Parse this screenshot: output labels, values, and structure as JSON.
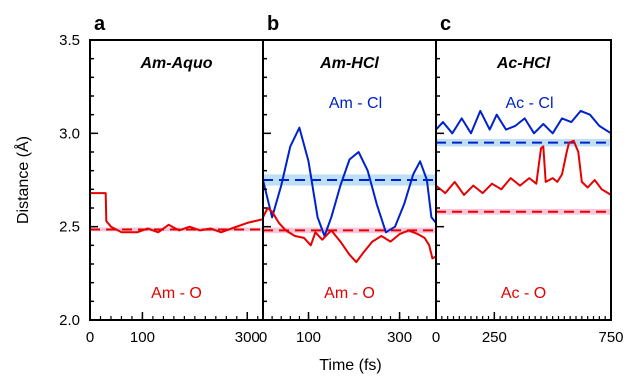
{
  "colors": {
    "oxygen": "#e60000",
    "chloride": "#0022cc",
    "oxygen_band": "#f7c6dc",
    "chloride_band": "#bfe0f4",
    "axis": "#000000"
  },
  "chart_data": {
    "type": "line",
    "ylabel": "Distance (Å)",
    "xlabel": "Time (fs)",
    "ylim": [
      2.0,
      3.5
    ],
    "yticks": [
      "2.0",
      "2.5",
      "3.0",
      "3.5"
    ],
    "panels": [
      {
        "letter": "a",
        "title": "Am-Aquo",
        "xlim": [
          0,
          330
        ],
        "xticks": [
          "0",
          "100",
          "300"
        ],
        "xtick_values": [
          0,
          100,
          300
        ],
        "labels": {
          "upper": "",
          "lower": "Am - O"
        },
        "series": [
          {
            "species": "oxygen",
            "values": [
              [
                0,
                2.68
              ],
              [
                30,
                2.68
              ],
              [
                31,
                2.53
              ],
              [
                40,
                2.5
              ],
              [
                60,
                2.47
              ],
              [
                90,
                2.47
              ],
              [
                110,
                2.49
              ],
              [
                130,
                2.47
              ],
              [
                150,
                2.51
              ],
              [
                170,
                2.48
              ],
              [
                190,
                2.5
              ],
              [
                210,
                2.48
              ],
              [
                230,
                2.49
              ],
              [
                250,
                2.47
              ],
              [
                270,
                2.49
              ],
              [
                300,
                2.52
              ],
              [
                330,
                2.54
              ]
            ]
          }
        ],
        "averages": [
          {
            "species": "oxygen",
            "value": 2.485,
            "band": [
              2.475,
              2.495
            ]
          }
        ]
      },
      {
        "letter": "b",
        "title": "Am-HCl",
        "xlim": [
          0,
          380
        ],
        "xticks": [
          "0",
          "100",
          "300"
        ],
        "xtick_values": [
          0,
          100,
          300
        ],
        "labels": {
          "upper": "Am - Cl",
          "lower": "Am - O"
        },
        "series": [
          {
            "species": "chloride",
            "values": [
              [
                0,
                2.75
              ],
              [
                20,
                2.55
              ],
              [
                40,
                2.72
              ],
              [
                60,
                2.93
              ],
              [
                80,
                3.03
              ],
              [
                100,
                2.85
              ],
              [
                120,
                2.55
              ],
              [
                135,
                2.45
              ],
              [
                150,
                2.55
              ],
              [
                170,
                2.72
              ],
              [
                190,
                2.86
              ],
              [
                210,
                2.9
              ],
              [
                230,
                2.8
              ],
              [
                250,
                2.62
              ],
              [
                270,
                2.47
              ],
              [
                290,
                2.5
              ],
              [
                310,
                2.62
              ],
              [
                330,
                2.78
              ],
              [
                345,
                2.85
              ],
              [
                360,
                2.75
              ],
              [
                370,
                2.55
              ],
              [
                380,
                2.52
              ]
            ]
          },
          {
            "species": "oxygen",
            "values": [
              [
                0,
                2.55
              ],
              [
                10,
                2.6
              ],
              [
                20,
                2.58
              ],
              [
                35,
                2.52
              ],
              [
                50,
                2.48
              ],
              [
                70,
                2.45
              ],
              [
                90,
                2.44
              ],
              [
                105,
                2.4
              ],
              [
                115,
                2.47
              ],
              [
                130,
                2.43
              ],
              [
                150,
                2.48
              ],
              [
                170,
                2.42
              ],
              [
                190,
                2.35
              ],
              [
                205,
                2.31
              ],
              [
                220,
                2.36
              ],
              [
                240,
                2.42
              ],
              [
                260,
                2.45
              ],
              [
                280,
                2.42
              ],
              [
                300,
                2.46
              ],
              [
                320,
                2.48
              ],
              [
                340,
                2.46
              ],
              [
                355,
                2.44
              ],
              [
                365,
                2.4
              ],
              [
                372,
                2.33
              ],
              [
                380,
                2.34
              ]
            ]
          }
        ],
        "averages": [
          {
            "species": "chloride",
            "value": 2.75,
            "band": [
              2.72,
              2.78
            ]
          },
          {
            "species": "oxygen",
            "value": 2.48,
            "band": [
              2.465,
              2.495
            ]
          }
        ]
      },
      {
        "letter": "c",
        "title": "Ac-HCl",
        "xlim": [
          0,
          750
        ],
        "xticks": [
          "0",
          "250",
          "750"
        ],
        "xtick_values": [
          0,
          250,
          750
        ],
        "labels": {
          "upper": "Ac - Cl",
          "lower": "Ac - O"
        },
        "series": [
          {
            "species": "chloride",
            "values": [
              [
                0,
                3.02
              ],
              [
                30,
                3.06
              ],
              [
                70,
                3.0
              ],
              [
                110,
                3.08
              ],
              [
                150,
                3.0
              ],
              [
                190,
                3.12
              ],
              [
                230,
                3.02
              ],
              [
                260,
                3.1
              ],
              [
                300,
                3.02
              ],
              [
                340,
                3.04
              ],
              [
                380,
                3.08
              ],
              [
                420,
                3.0
              ],
              [
                460,
                3.05
              ],
              [
                500,
                3.0
              ],
              [
                540,
                3.08
              ],
              [
                580,
                3.06
              ],
              [
                620,
                3.12
              ],
              [
                660,
                3.1
              ],
              [
                700,
                3.04
              ],
              [
                750,
                3.0
              ]
            ]
          },
          {
            "species": "oxygen",
            "values": [
              [
                0,
                2.72
              ],
              [
                40,
                2.68
              ],
              [
                80,
                2.74
              ],
              [
                120,
                2.67
              ],
              [
                160,
                2.72
              ],
              [
                200,
                2.68
              ],
              [
                240,
                2.73
              ],
              [
                280,
                2.7
              ],
              [
                320,
                2.76
              ],
              [
                360,
                2.72
              ],
              [
                400,
                2.76
              ],
              [
                430,
                2.73
              ],
              [
                450,
                2.92
              ],
              [
                460,
                2.93
              ],
              [
                470,
                2.74
              ],
              [
                500,
                2.76
              ],
              [
                520,
                2.74
              ],
              [
                540,
                2.78
              ],
              [
                560,
                2.9
              ],
              [
                570,
                2.95
              ],
              [
                590,
                2.96
              ],
              [
                610,
                2.9
              ],
              [
                625,
                2.74
              ],
              [
                650,
                2.71
              ],
              [
                680,
                2.75
              ],
              [
                710,
                2.7
              ],
              [
                750,
                2.67
              ]
            ]
          }
        ],
        "averages": [
          {
            "species": "chloride",
            "value": 2.95,
            "band": [
              2.93,
              2.97
            ]
          },
          {
            "species": "oxygen",
            "value": 2.58,
            "band": [
              2.565,
              2.595
            ]
          }
        ]
      }
    ]
  }
}
